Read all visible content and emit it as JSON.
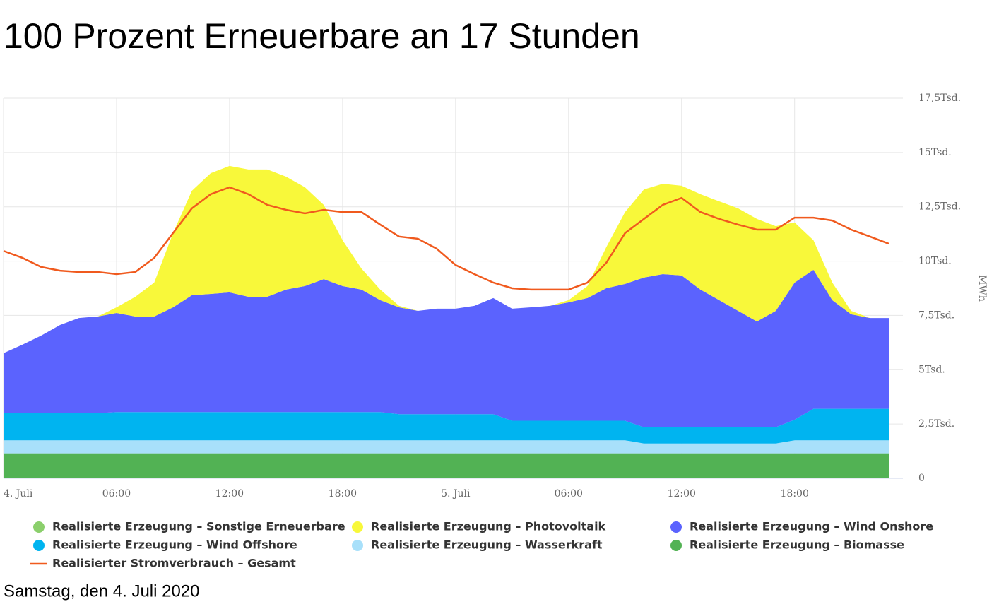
{
  "chart_data": {
    "type": "stacked_area",
    "title": "100 Prozent Erneuerbare an 17 Stunden",
    "subtitle": "Samstag, den 4. Juli 2020",
    "y_axis_label": "MWh",
    "x": [
      0,
      1,
      2,
      3,
      4,
      5,
      6,
      7,
      8,
      9,
      10,
      11,
      12,
      13,
      14,
      15,
      16,
      17,
      18,
      19,
      20,
      21,
      22,
      23,
      24,
      25,
      26,
      27,
      28,
      29,
      30,
      31,
      32,
      33,
      34,
      35,
      36,
      37,
      38,
      39,
      40,
      41,
      42,
      43,
      44,
      45,
      46,
      47
    ],
    "xlim": [
      0,
      47.75
    ],
    "xticks": [
      {
        "value": 0,
        "label": "4. Juli"
      },
      {
        "value": 6,
        "label": "06:00"
      },
      {
        "value": 12,
        "label": "12:00"
      },
      {
        "value": 18,
        "label": "18:00"
      },
      {
        "value": 24,
        "label": "5. Juli"
      },
      {
        "value": 30,
        "label": "06:00"
      },
      {
        "value": 36,
        "label": "12:00"
      },
      {
        "value": 42,
        "label": "18:00"
      }
    ],
    "ylim": [
      0,
      17500
    ],
    "yticks": [
      0,
      {
        "value": 2500,
        "label": "2,5Tsd."
      },
      {
        "value": 5000,
        "label": "5Tsd."
      },
      {
        "value": 7500,
        "label": "7,5Tsd."
      },
      {
        "value": 10000,
        "label": "10Tsd."
      },
      {
        "value": 12500,
        "label": "12,5Tsd."
      },
      {
        "value": 15000,
        "label": "15Tsd."
      },
      {
        "value": 17500,
        "label": "17,5Tsd."
      }
    ],
    "grid": true,
    "series": [
      {
        "name": "Realisierte Erzeugung – Biomasse",
        "color": "#52b254",
        "stack": true,
        "values": [
          1150,
          1150,
          1150,
          1150,
          1150,
          1150,
          1150,
          1150,
          1150,
          1150,
          1150,
          1150,
          1150,
          1150,
          1150,
          1150,
          1150,
          1150,
          1150,
          1150,
          1150,
          1150,
          1150,
          1150,
          1150,
          1150,
          1150,
          1150,
          1150,
          1150,
          1150,
          1150,
          1150,
          1150,
          1150,
          1150,
          1150,
          1150,
          1150,
          1150,
          1150,
          1150,
          1150,
          1150,
          1150,
          1150,
          1150,
          1150
        ]
      },
      {
        "name": "Realisierte Erzeugung – Wasserkraft",
        "color": "#a8e0fa",
        "stack": true,
        "values": [
          600,
          600,
          600,
          600,
          600,
          600,
          600,
          600,
          600,
          600,
          600,
          600,
          600,
          600,
          600,
          600,
          600,
          600,
          600,
          600,
          600,
          600,
          600,
          600,
          600,
          600,
          600,
          600,
          600,
          600,
          600,
          600,
          600,
          600,
          450,
          450,
          450,
          450,
          450,
          450,
          450,
          450,
          600,
          600,
          600,
          600,
          600,
          600
        ]
      },
      {
        "name": "Realisierte Erzeugung – Wind Offshore",
        "color": "#00b4f0",
        "stack": true,
        "values": [
          1250,
          1250,
          1250,
          1250,
          1250,
          1250,
          1300,
          1300,
          1300,
          1300,
          1300,
          1300,
          1300,
          1300,
          1300,
          1300,
          1300,
          1300,
          1300,
          1300,
          1300,
          1200,
          1200,
          1200,
          1200,
          1200,
          1200,
          900,
          900,
          900,
          900,
          900,
          900,
          900,
          750,
          750,
          750,
          750,
          750,
          750,
          750,
          750,
          950,
          1450,
          1450,
          1450,
          1450,
          1450
        ]
      },
      {
        "name": "Realisierte Erzeugung – Wind Onshore",
        "color": "#5b63fe",
        "stack": true,
        "values": [
          2760,
          3150,
          3570,
          4060,
          4380,
          4450,
          4560,
          4400,
          4400,
          4820,
          5380,
          5440,
          5510,
          5310,
          5310,
          5640,
          5800,
          6120,
          5800,
          5640,
          5150,
          4920,
          4760,
          4860,
          4860,
          4990,
          5350,
          5160,
          5220,
          5290,
          5450,
          5650,
          6100,
          6300,
          6890,
          7050,
          6990,
          6340,
          5850,
          5360,
          4870,
          5360,
          6310,
          6400,
          5000,
          4350,
          4180,
          4180
        ]
      },
      {
        "name": "Realisierte Erzeugung – Photovoltaik",
        "color": "#f8f83a",
        "stack": true,
        "values": [
          0,
          0,
          0,
          0,
          0,
          0,
          260,
          910,
          1560,
          3420,
          4810,
          5560,
          5820,
          5860,
          5860,
          5200,
          4550,
          3420,
          2110,
          970,
          490,
          70,
          0,
          0,
          0,
          0,
          0,
          0,
          0,
          0,
          100,
          550,
          1890,
          3310,
          4060,
          4160,
          4130,
          4390,
          4550,
          4720,
          4720,
          3900,
          2770,
          1360,
          810,
          160,
          0,
          0
        ]
      },
      {
        "name": "Realisierte Erzeugung – Sonstige Erneuerbare",
        "color": "#8bcf6c",
        "stack": true,
        "values": [
          0,
          0,
          0,
          0,
          0,
          0,
          0,
          0,
          0,
          0,
          0,
          0,
          0,
          0,
          0,
          0,
          0,
          0,
          0,
          0,
          0,
          0,
          0,
          0,
          0,
          0,
          0,
          0,
          0,
          0,
          0,
          0,
          0,
          0,
          0,
          0,
          0,
          0,
          0,
          0,
          0,
          0,
          0,
          0,
          0,
          0,
          0,
          0
        ]
      },
      {
        "name": "Realisierter Stromverbrauch – Gesamt",
        "color": "#f05a1e",
        "stack": false,
        "values": [
          10470,
          10150,
          9730,
          9560,
          9500,
          9500,
          9400,
          9500,
          10150,
          11290,
          12430,
          13080,
          13400,
          13080,
          12590,
          12360,
          12200,
          12360,
          12260,
          12260,
          11680,
          11130,
          11030,
          10570,
          9820,
          9400,
          9010,
          8750,
          8690,
          8690,
          8690,
          9010,
          9920,
          11290,
          11940,
          12590,
          12910,
          12260,
          11940,
          11680,
          11450,
          11450,
          12000,
          12000,
          11870,
          11450,
          11130,
          10800
        ]
      }
    ],
    "legend_order": [
      5,
      4,
      3,
      2,
      1,
      0,
      6
    ]
  }
}
